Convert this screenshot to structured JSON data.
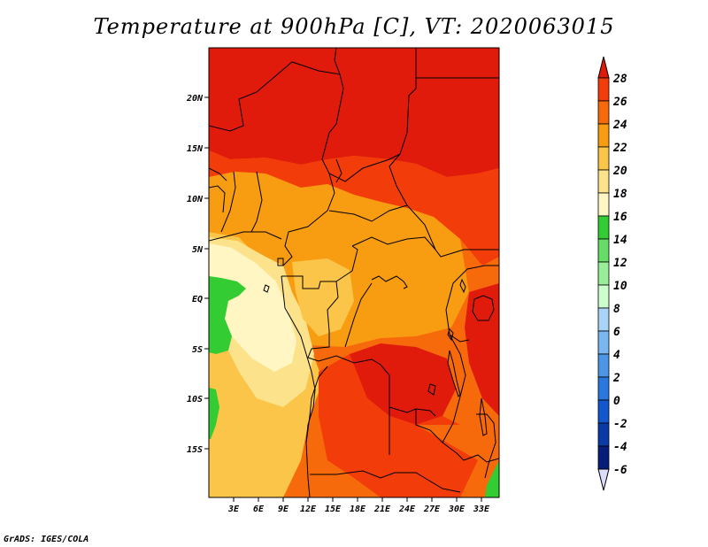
{
  "title": "Temperature at 900hPa [C], VT: 2020063015",
  "credit": "GrADS: IGES/COLA",
  "map": {
    "lat_labels": [
      "20N",
      "15N",
      "10N",
      "5N",
      "EQ",
      "5S",
      "10S",
      "15S"
    ],
    "lon_labels": [
      "3E",
      "6E",
      "9E",
      "12E",
      "15E",
      "18E",
      "21E",
      "24E",
      "27E",
      "30E",
      "33E"
    ],
    "border_color": "#000000"
  },
  "colorbar": {
    "labels": [
      "28",
      "26",
      "24",
      "22",
      "20",
      "18",
      "16",
      "14",
      "12",
      "10",
      "8",
      "6",
      "4",
      "2",
      "0",
      "-2",
      "-4",
      "-6"
    ],
    "colors": [
      "#e11b0c",
      "#f23c0a",
      "#f76a0c",
      "#f89d11",
      "#fac549",
      "#fde28c",
      "#fff6c3",
      "#33cc33",
      "#66dd66",
      "#99ee99",
      "#ccffcc",
      "#a9d4f7",
      "#7ab6ef",
      "#4d96e5",
      "#2a78de",
      "#1257cc",
      "#0a3aa6",
      "#061d7a",
      "#000a54",
      "#dcdcff"
    ]
  },
  "field_colors": {
    "very_hot": "#e11b0c",
    "hot": "#f23c0a",
    "warm": "#f76a0c",
    "mild": "#f89d11",
    "temperate": "#fac549",
    "cool": "#fde28c",
    "cooler": "#fff6c3",
    "cold_green": "#33cc33"
  }
}
